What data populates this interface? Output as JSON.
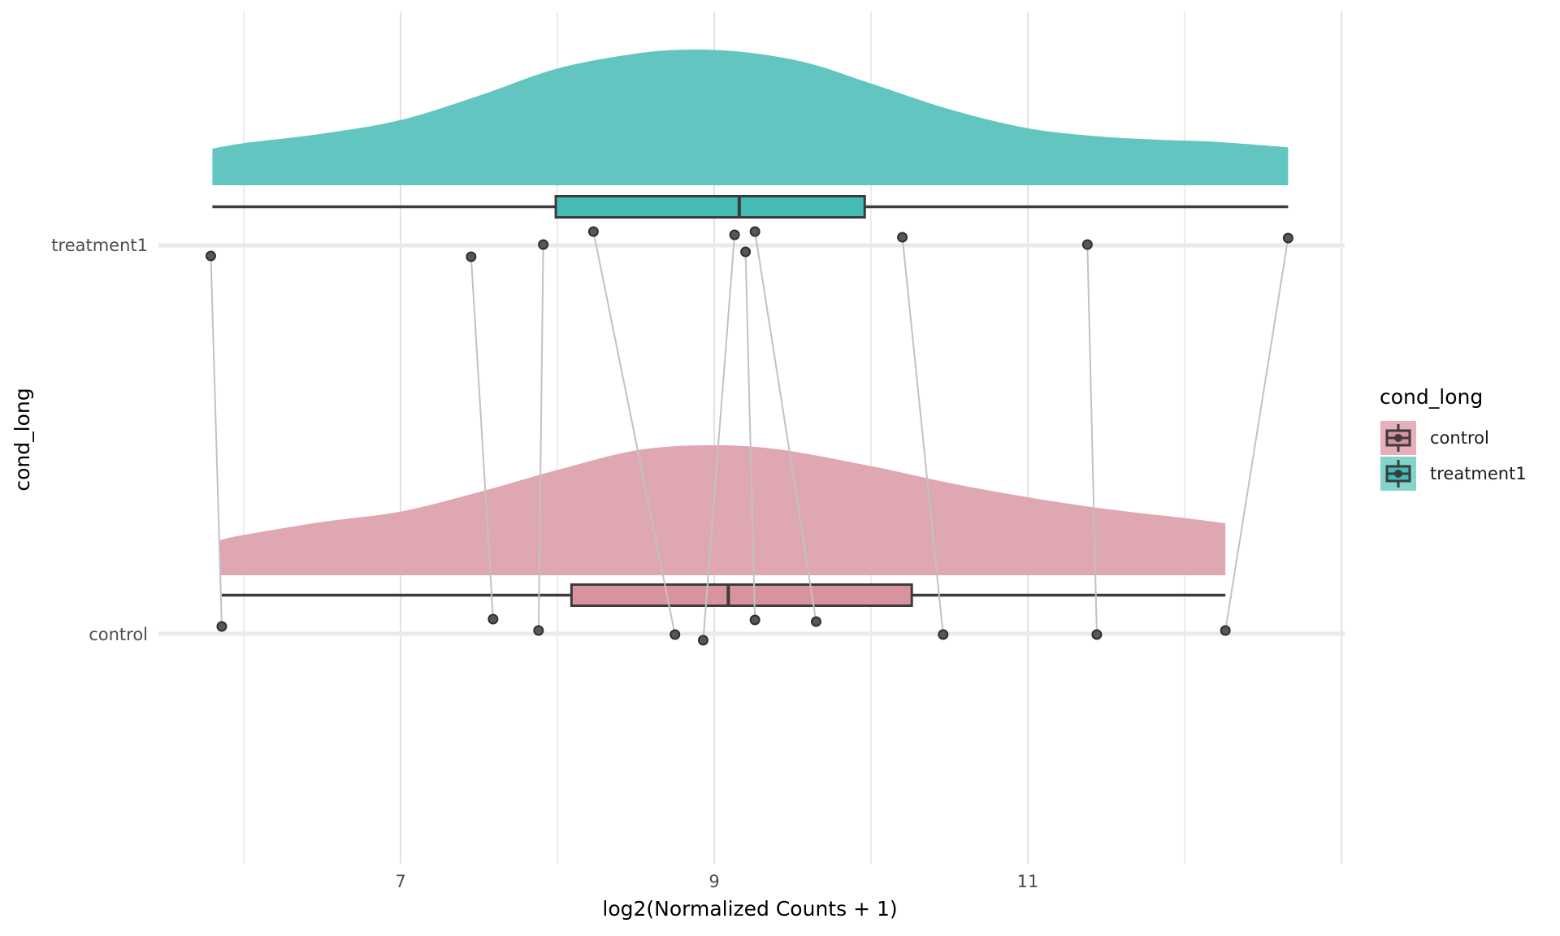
{
  "y_axis": {
    "title": "cond_long",
    "categories": [
      {
        "label": "treatment1"
      },
      {
        "label": "control"
      }
    ]
  },
  "x_axis": {
    "title": "log2(Normalized Counts + 1)",
    "tick_labels": [
      "7",
      "9",
      "11"
    ]
  },
  "legend": {
    "title": "cond_long",
    "items": [
      {
        "label": "control",
        "swatch_color": "#E7AFB9",
        "box_color": "#D9939F"
      },
      {
        "label": "treatment1",
        "swatch_color": "#85D4CC",
        "box_color": "#45BCB3"
      }
    ]
  },
  "chart_data": {
    "type": "raincloud",
    "subtype": "density + horizontal boxplot + paired jittered points",
    "title": "",
    "xlabel": "log2(Normalized Counts + 1)",
    "ylabel": "cond_long",
    "x_ticks": [
      7,
      9,
      11
    ],
    "x_gridlines": [
      6,
      7,
      8,
      9,
      10,
      11,
      12,
      13
    ],
    "x_axis_range_approx": [
      5.45,
      13.0
    ],
    "grid": true,
    "legend_position": "right",
    "paired_by_index": true,
    "groups": [
      {
        "name": "treatment1",
        "box": {
          "min": 5.8,
          "q1": 7.99,
          "median": 9.16,
          "q3": 9.96,
          "max": 12.66
        },
        "density": [
          [
            5.8,
            0.27
          ],
          [
            6.0,
            0.31
          ],
          [
            6.5,
            0.38
          ],
          [
            7.0,
            0.48
          ],
          [
            7.5,
            0.66
          ],
          [
            8.0,
            0.86
          ],
          [
            8.5,
            0.97
          ],
          [
            8.85,
            1.0
          ],
          [
            9.2,
            0.98
          ],
          [
            9.6,
            0.9
          ],
          [
            10.0,
            0.75
          ],
          [
            10.5,
            0.56
          ],
          [
            11.0,
            0.42
          ],
          [
            11.45,
            0.36
          ],
          [
            11.85,
            0.335
          ],
          [
            12.2,
            0.32
          ],
          [
            12.66,
            0.28
          ]
        ],
        "points": [
          {
            "v": 5.79,
            "dy": 13
          },
          {
            "v": 7.45,
            "dy": 14
          },
          {
            "v": 7.91,
            "dy": -1
          },
          {
            "v": 8.23,
            "dy": -17
          },
          {
            "v": 9.13,
            "dy": -13
          },
          {
            "v": 9.2,
            "dy": 8
          },
          {
            "v": 9.26,
            "dy": -17
          },
          {
            "v": 10.2,
            "dy": -10
          },
          {
            "v": 11.38,
            "dy": -1
          },
          {
            "v": 12.66,
            "dy": -9
          }
        ]
      },
      {
        "name": "control",
        "box": {
          "min": 5.86,
          "q1": 8.09,
          "median": 9.09,
          "q3": 10.26,
          "max": 12.26
        },
        "density": [
          [
            5.85,
            0.27
          ],
          [
            6.0,
            0.31
          ],
          [
            6.5,
            0.41
          ],
          [
            7.0,
            0.49
          ],
          [
            7.5,
            0.64
          ],
          [
            8.0,
            0.81
          ],
          [
            8.5,
            0.96
          ],
          [
            8.95,
            1.0
          ],
          [
            9.4,
            0.97
          ],
          [
            10.0,
            0.84
          ],
          [
            10.5,
            0.71
          ],
          [
            11.0,
            0.6
          ],
          [
            11.5,
            0.51
          ],
          [
            12.0,
            0.44
          ],
          [
            12.26,
            0.4
          ]
        ],
        "points": [
          {
            "v": 5.86,
            "dy": -9
          },
          {
            "v": 7.59,
            "dy": -18
          },
          {
            "v": 7.88,
            "dy": -4
          },
          {
            "v": 8.75,
            "dy": 1
          },
          {
            "v": 8.93,
            "dy": 8
          },
          {
            "v": 9.26,
            "dy": -17
          },
          {
            "v": 9.65,
            "dy": -15
          },
          {
            "v": 10.46,
            "dy": 1
          },
          {
            "v": 11.44,
            "dy": 1
          },
          {
            "v": 12.26,
            "dy": -4
          }
        ]
      }
    ],
    "colors": {
      "treatment1_density": "#63C5BF",
      "treatment1_box": "#45BCB3",
      "control_density": "#DFA7B1",
      "control_box": "#D9939F",
      "stroke_dark": "#3C3C3C",
      "point_fill": "#575757",
      "point_stroke": "#303030",
      "connector": "#C2C2C2",
      "grid_major": "#E3E3E3",
      "grid_minor": "#ECECEC",
      "row_band": "#EAEAEA",
      "tick_text": "#4D4D4D",
      "title_text": "#000000"
    }
  }
}
